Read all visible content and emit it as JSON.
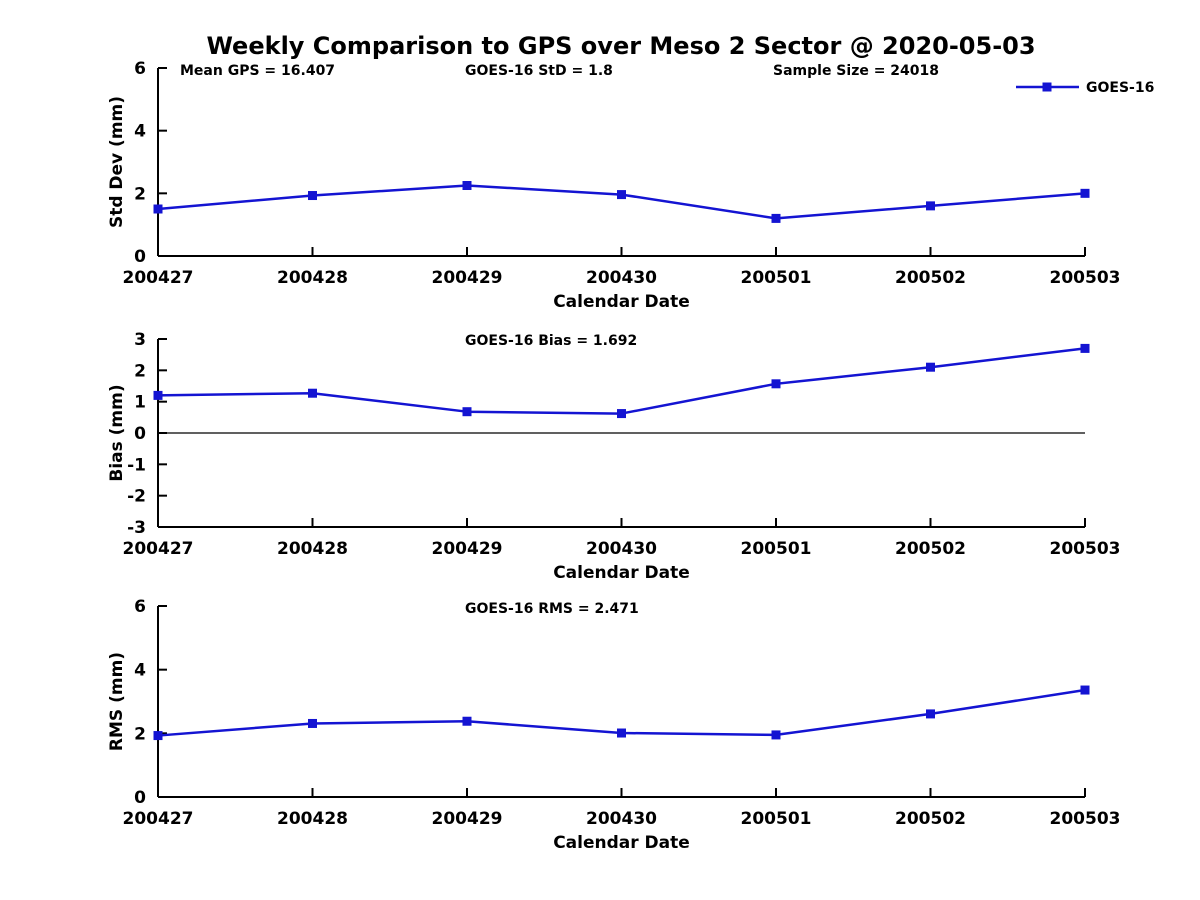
{
  "figure": {
    "title": "Weekly Comparison to GPS over Meso 2 Sector @ 2020-05-03"
  },
  "legend": {
    "label": "GOES-16",
    "position": "top-right"
  },
  "colors": {
    "line": "#1414d2",
    "marker": "#1414d2",
    "axis": "#000000",
    "zero_line": "#000000",
    "background": "#ffffff"
  },
  "chart_data": [
    {
      "id": "stddev",
      "type": "line",
      "categories": [
        "200427",
        "200428",
        "200429",
        "200430",
        "200501",
        "200502",
        "200503"
      ],
      "series": [
        {
          "name": "GOES-16",
          "values": [
            1.5,
            1.93,
            2.25,
            1.96,
            1.2,
            1.6,
            2.0
          ]
        }
      ],
      "xlabel": "Calendar Date",
      "ylabel": "Std Dev (mm)",
      "ylim": [
        0,
        6
      ],
      "yticks": [
        0,
        2,
        4,
        6
      ],
      "grid": false,
      "zero_line": false,
      "legend_position": "top-right",
      "annotations": [
        "Mean GPS = 16.407",
        "GOES-16 StD = 1.8",
        "Sample Size = 24018"
      ]
    },
    {
      "id": "bias",
      "type": "line",
      "categories": [
        "200427",
        "200428",
        "200429",
        "200430",
        "200501",
        "200502",
        "200503"
      ],
      "series": [
        {
          "name": "GOES-16",
          "values": [
            1.2,
            1.27,
            0.68,
            0.62,
            1.57,
            2.1,
            2.7
          ]
        }
      ],
      "xlabel": "Calendar Date",
      "ylabel": "Bias (mm)",
      "ylim": [
        -3,
        3
      ],
      "yticks": [
        -3,
        -2,
        -1,
        0,
        1,
        2,
        3
      ],
      "grid": false,
      "zero_line": true,
      "annotations": [
        "GOES-16 Bias = 1.692"
      ]
    },
    {
      "id": "rms",
      "type": "line",
      "categories": [
        "200427",
        "200428",
        "200429",
        "200430",
        "200501",
        "200502",
        "200503"
      ],
      "series": [
        {
          "name": "GOES-16",
          "values": [
            1.93,
            2.31,
            2.38,
            2.01,
            1.95,
            2.61,
            3.36
          ]
        }
      ],
      "xlabel": "Calendar Date",
      "ylabel": "RMS (mm)",
      "ylim": [
        0,
        6
      ],
      "yticks": [
        0,
        2,
        4,
        6
      ],
      "grid": false,
      "zero_line": false,
      "annotations": [
        "GOES-16 RMS = 2.471"
      ]
    }
  ]
}
